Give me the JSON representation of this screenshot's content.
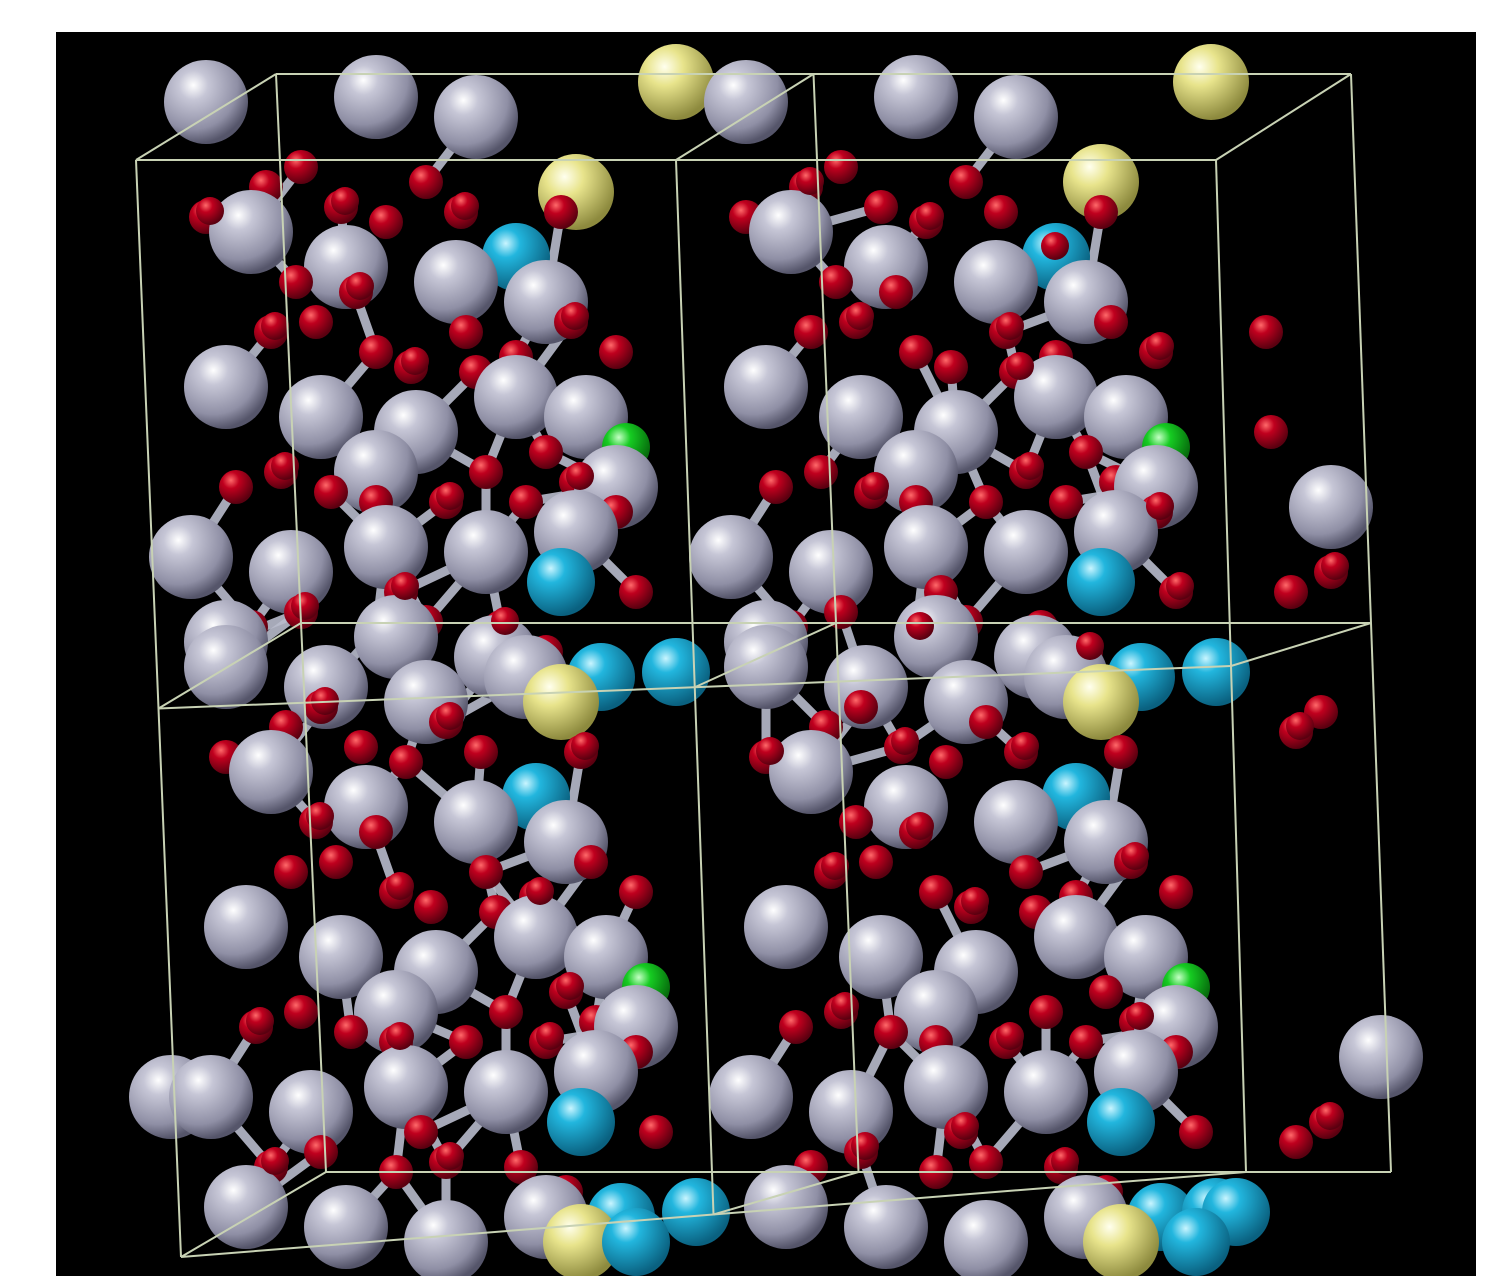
{
  "scene": {
    "background": "#000000",
    "frame_color": "#ffffff",
    "cell_edge_color": "#c8d2b4",
    "atom_types": [
      {
        "name": "large-grey-atom",
        "color": "#a9a9bd"
      },
      {
        "name": "oxygen-atom",
        "color": "#b4001a"
      },
      {
        "name": "cyan-atom",
        "color": "#1ba8d2"
      },
      {
        "name": "yellow-atom",
        "color": "#e9e68a"
      },
      {
        "name": "green-atom",
        "color": "#14c81e"
      }
    ],
    "bond_color": "#b9bccc"
  }
}
